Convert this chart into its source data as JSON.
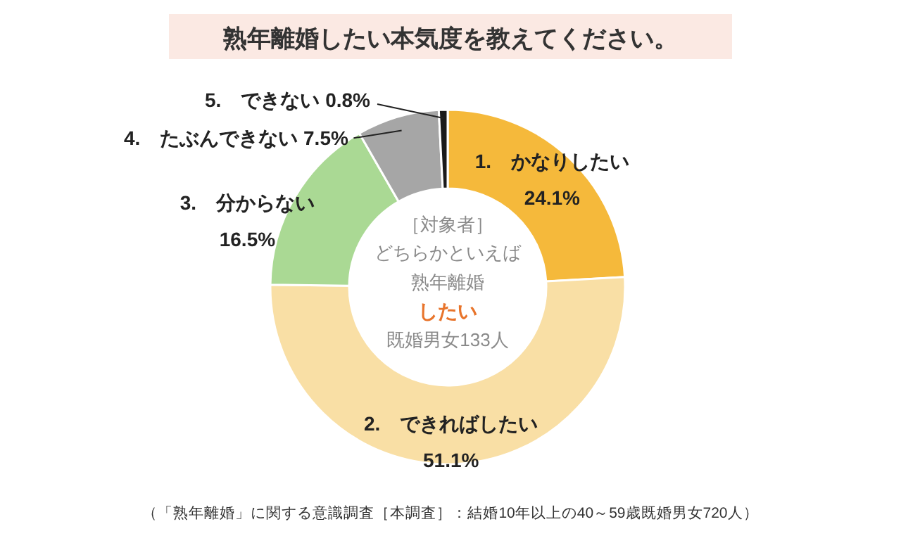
{
  "chart_data": {
    "type": "donut",
    "title": "熟年離婚したい本気度を教えてください。",
    "categories": [
      "1.　かなりしたい",
      "2.　できればしたい",
      "3.　分からない",
      "4.　たぶんできない",
      "5.　できない"
    ],
    "values": [
      24.1,
      51.1,
      16.5,
      7.5,
      0.8
    ],
    "value_labels": [
      "24.1%",
      "51.1%",
      "16.5%",
      "7.5%",
      "0.8%"
    ],
    "colors": [
      "#f5b93b",
      "#f9dfa5",
      "#aad994",
      "#a6a6a6",
      "#1a1a1a"
    ],
    "annotations": [
      "［対象者］",
      "どちらかといえば",
      "熟年離婚",
      "したい",
      "既婚男女133人",
      "（「熟年離婚」に関する意識調査［本調査］：結婚10年以上の40～59歳既婚男女720人）"
    ]
  }
}
